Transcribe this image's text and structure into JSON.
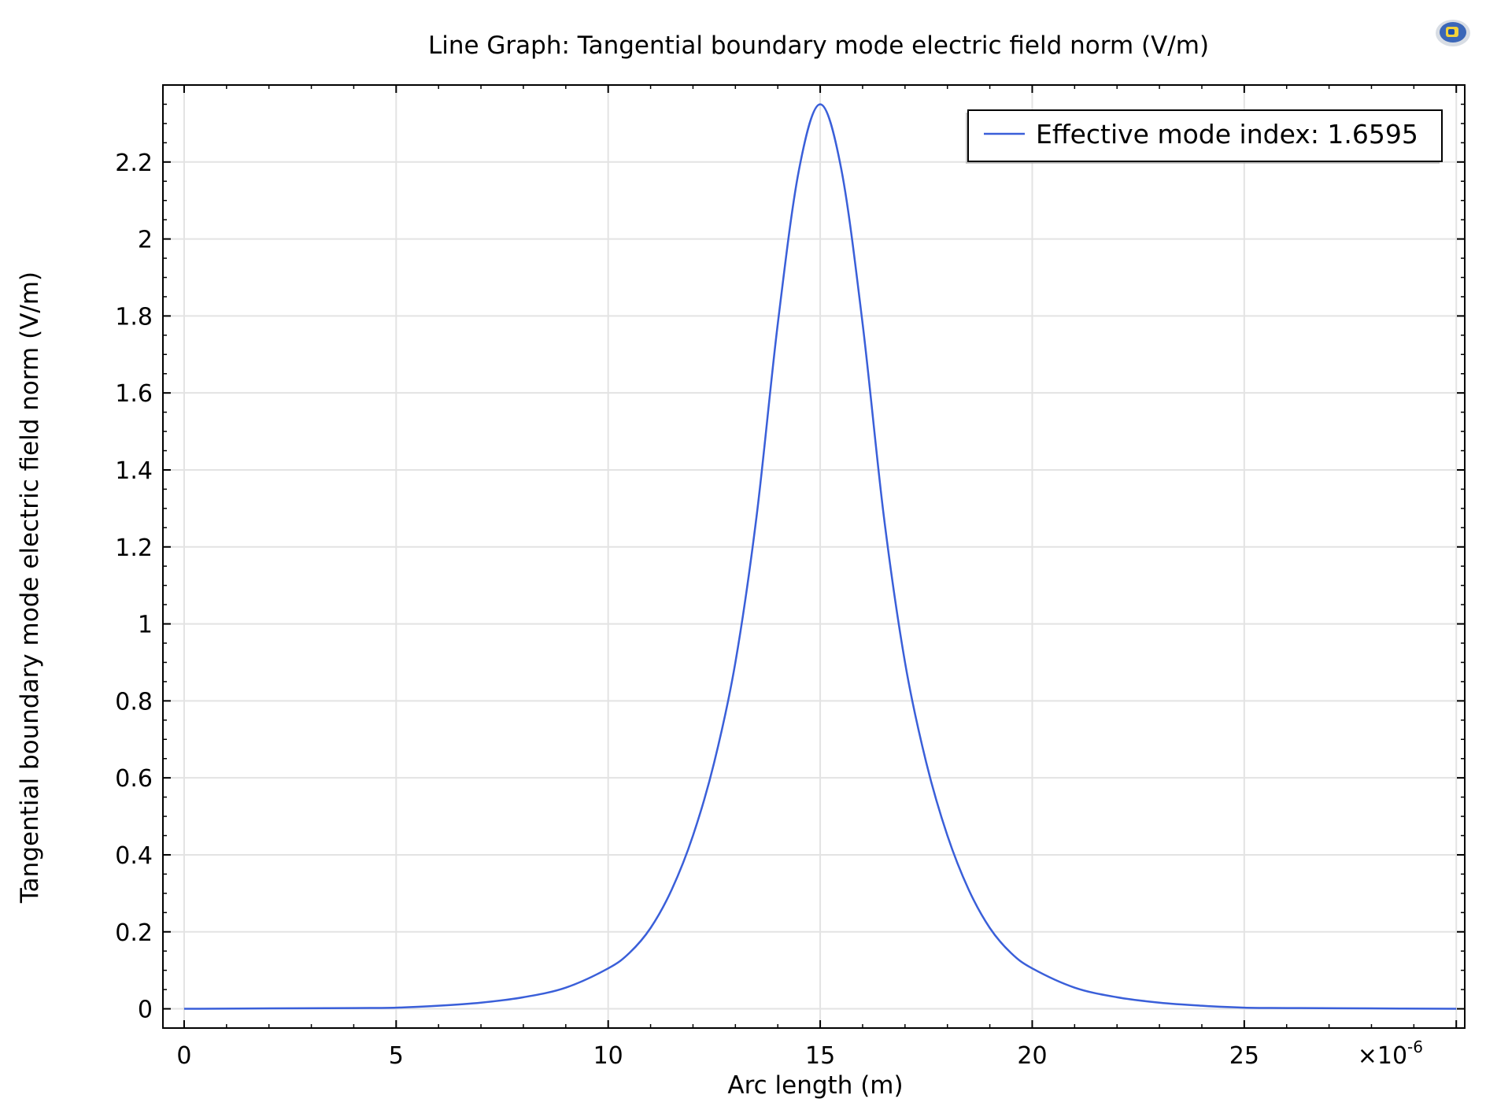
{
  "chart_data": {
    "type": "line",
    "title": "Line Graph: Tangential boundary mode electric field norm (V/m)",
    "xlabel": "Arc length (m)",
    "ylabel": "Tangential boundary mode electric field norm (V/m)",
    "x_multiplier_label": "×10",
    "x_multiplier_exponent": "-6",
    "xlim": [
      -0.5,
      30.2
    ],
    "ylim": [
      -0.05,
      2.4
    ],
    "xticks": [
      "0",
      "5",
      "10",
      "15",
      "20",
      "25"
    ],
    "xtick_values": [
      0,
      5,
      10,
      15,
      20,
      25
    ],
    "yticks": [
      "0",
      "0.2",
      "0.4",
      "0.6",
      "0.8",
      "1",
      "1.2",
      "1.4",
      "1.6",
      "1.8",
      "2",
      "2.2"
    ],
    "ytick_values": [
      0,
      0.2,
      0.4,
      0.6,
      0.8,
      1.0,
      1.2,
      1.4,
      1.6,
      1.8,
      2.0,
      2.2
    ],
    "grid": true,
    "legend_position": "top-right",
    "series": [
      {
        "name": "Effective mode index: 1.6595",
        "color": "#3a5fd9",
        "x": [
          0,
          2,
          4,
          5,
          6,
          7,
          8,
          9,
          10,
          10.5,
          11,
          11.5,
          12,
          12.5,
          13,
          13.5,
          14,
          14.5,
          15,
          15.5,
          16,
          16.5,
          17,
          17.5,
          18,
          18.5,
          19,
          19.5,
          20,
          21,
          22,
          23,
          24,
          25,
          26,
          28,
          30
        ],
        "y": [
          0.0,
          0.001,
          0.002,
          0.003,
          0.008,
          0.016,
          0.03,
          0.055,
          0.105,
          0.145,
          0.21,
          0.31,
          0.45,
          0.64,
          0.9,
          1.28,
          1.78,
          2.18,
          2.35,
          2.18,
          1.78,
          1.28,
          0.9,
          0.64,
          0.45,
          0.31,
          0.21,
          0.145,
          0.105,
          0.055,
          0.03,
          0.016,
          0.008,
          0.003,
          0.002,
          0.001,
          0.0
        ]
      }
    ]
  },
  "icon": {
    "name": "comsol-logo-icon"
  }
}
